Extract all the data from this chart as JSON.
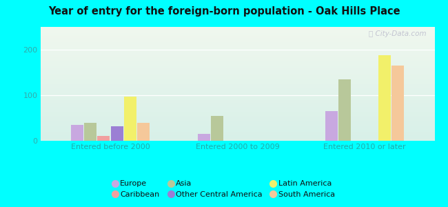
{
  "title": "Year of entry for the foreign-born population - Oak Hills Place",
  "background_outer": "#00FFFF",
  "categories": [
    "Entered before 2000",
    "Entered 2000 to 2009",
    "Entered 2010 or later"
  ],
  "series_order": [
    "Europe",
    "Asia",
    "Caribbean",
    "Other Central America",
    "Latin America",
    "South America"
  ],
  "series": {
    "Europe": {
      "color": "#c8a8e0",
      "values": [
        35,
        15,
        65
      ]
    },
    "Asia": {
      "color": "#b8c89a",
      "values": [
        40,
        55,
        135
      ]
    },
    "Caribbean": {
      "color": "#f0a0a0",
      "values": [
        10,
        0,
        0
      ]
    },
    "Other Central America": {
      "color": "#9b7fd4",
      "values": [
        32,
        0,
        0
      ]
    },
    "Latin America": {
      "color": "#f2f06a",
      "values": [
        97,
        0,
        188
      ]
    },
    "South America": {
      "color": "#f5c89a",
      "values": [
        40,
        0,
        165
      ]
    }
  },
  "ylim": [
    0,
    250
  ],
  "yticks": [
    0,
    100,
    200
  ],
  "watermark": "Ⓢ City-Data.com",
  "legend_colors": {
    "Europe": "#c8a8e0",
    "Caribbean": "#f0a0a0",
    "Asia": "#b8c89a",
    "Other Central America": "#9b7fd4",
    "Latin America": "#f2f06a",
    "South America": "#f5c89a"
  }
}
